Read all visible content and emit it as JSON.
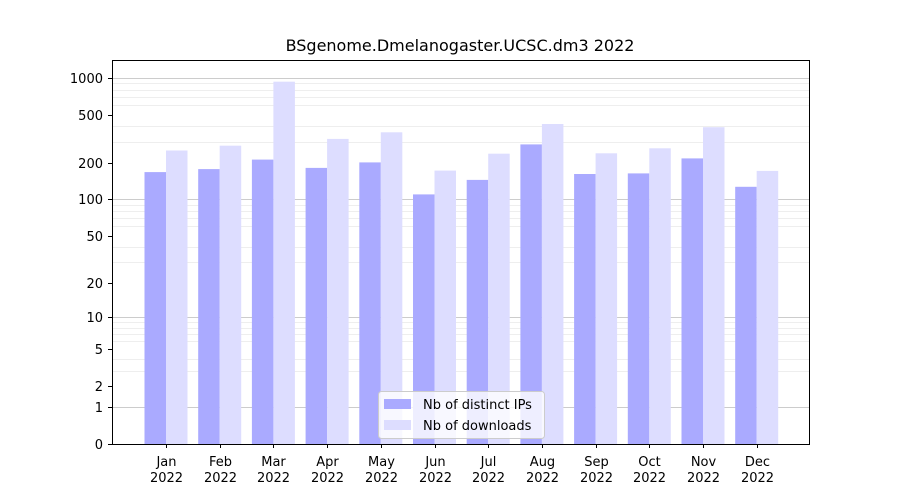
{
  "chart_data": {
    "type": "bar",
    "title": "BSgenome.Dmelanogaster.UCSC.dm3 2022",
    "xlabel": "",
    "ylabel": "",
    "yscale": "log1p",
    "ylim": [
      0,
      1400
    ],
    "yticks": [
      0,
      1,
      2,
      5,
      10,
      20,
      50,
      100,
      200,
      500,
      1000
    ],
    "ytick_labels": [
      "0",
      "1",
      "2",
      "5",
      "10",
      "20",
      "50",
      "100",
      "200",
      "500",
      "1000"
    ],
    "grid": true,
    "legend_position": "bottom-center",
    "categories": [
      [
        "Jan",
        "2022"
      ],
      [
        "Feb",
        "2022"
      ],
      [
        "Mar",
        "2022"
      ],
      [
        "Apr",
        "2022"
      ],
      [
        "May",
        "2022"
      ],
      [
        "Jun",
        "2022"
      ],
      [
        "Jul",
        "2022"
      ],
      [
        "Aug",
        "2022"
      ],
      [
        "Sep",
        "2022"
      ],
      [
        "Oct",
        "2022"
      ],
      [
        "Nov",
        "2022"
      ],
      [
        "Dec",
        "2022"
      ]
    ],
    "series": [
      {
        "name": "Nb of distinct IPs",
        "color": "#aaaaff",
        "values": [
          168,
          178,
          213,
          182,
          202,
          110,
          145,
          284,
          162,
          164,
          218,
          127
        ]
      },
      {
        "name": "Nb of downloads",
        "color": "#ddddff",
        "values": [
          253,
          277,
          930,
          315,
          357,
          173,
          238,
          418,
          240,
          264,
          393,
          172
        ]
      }
    ]
  }
}
